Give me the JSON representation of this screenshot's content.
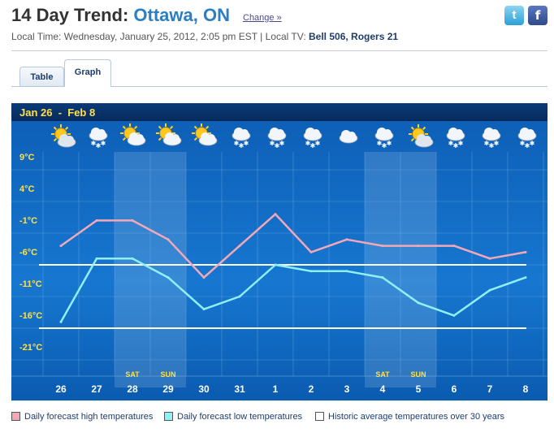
{
  "header": {
    "title_prefix": "14 Day Trend:",
    "city": "Ottawa, ON",
    "change_link": "Change »",
    "local_time": "Local Time: Wednesday, January 25, 2012, 2:05 pm EST  |  Local TV:",
    "local_tv": "Bell 506, Rogers 21",
    "twitter_icon": "t",
    "facebook_icon": "f"
  },
  "tabs": [
    {
      "label": "Table",
      "active": false
    },
    {
      "label": "Graph",
      "active": true
    }
  ],
  "chart_data": {
    "type": "line",
    "title": "Jan 26  -  Feb 8",
    "x": [
      "26",
      "27",
      "28",
      "29",
      "30",
      "31",
      "1",
      "2",
      "3",
      "4",
      "5",
      "6",
      "7",
      "8"
    ],
    "weekend_labels": [
      {
        "index": 2,
        "label": "SAT"
      },
      {
        "index": 3,
        "label": "SUN"
      },
      {
        "index": 9,
        "label": "SAT"
      },
      {
        "index": 10,
        "label": "SUN"
      }
    ],
    "icons": [
      "sunny-cloudy",
      "snow",
      "partly-sunny",
      "partly-sunny",
      "partly-sunny",
      "snow",
      "snow",
      "snow",
      "cloudy",
      "snow",
      "sunny-cloudy",
      "snow",
      "snow",
      "snow"
    ],
    "y_ticks": [
      "9°C",
      "4°C",
      "-1°C",
      "-6°C",
      "-11°C",
      "-16°C",
      "-21°C"
    ],
    "y_tick_values": [
      9,
      4,
      -1,
      -6,
      -11,
      -16,
      -21
    ],
    "ylim": [
      -21,
      9
    ],
    "series": [
      {
        "name": "Daily forecast high temperatures",
        "color": "#f2a8b8",
        "values": [
          -3,
          1,
          1,
          -2,
          -8,
          -3,
          2,
          -4,
          -2,
          -3,
          -3,
          -3,
          -5,
          -4
        ]
      },
      {
        "name": "Daily forecast low temperatures",
        "color": "#8ff0f6",
        "values": [
          -15,
          -5,
          -5,
          -8,
          -13,
          -11,
          -6,
          -7,
          -7,
          -8,
          -12,
          -14,
          -10,
          -8
        ]
      }
    ],
    "historic_lines": [
      -6,
      -16
    ],
    "historic_color": "#ffffff"
  },
  "legend": {
    "high": "Daily forecast high temperatures",
    "low": "Daily forecast low temperatures",
    "historic": "Historic average temperatures over 30 years"
  }
}
